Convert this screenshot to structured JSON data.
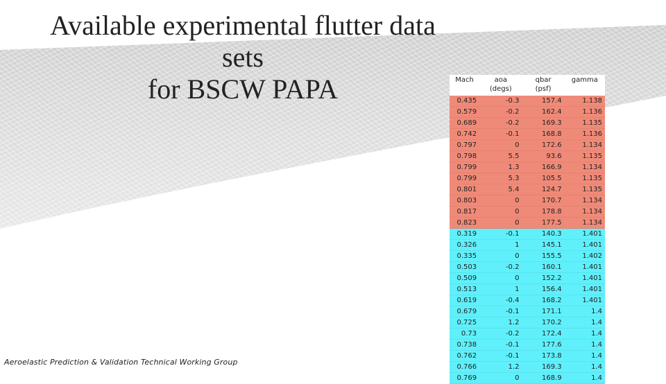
{
  "slide": {
    "title_line1": "Available experimental flutter data sets",
    "title_line2": "for BSCW PAPA",
    "footer": "Aeroelastic Prediction & Validation Technical Working Group"
  },
  "table": {
    "headers": [
      {
        "label": "Mach",
        "unit": ""
      },
      {
        "label": "aoa",
        "unit": "(degs)"
      },
      {
        "label": "qbar",
        "unit": "(psf)"
      },
      {
        "label": "gamma",
        "unit": ""
      }
    ],
    "row_colors": {
      "group1": "#f08a78",
      "group2": "#5ff0fb"
    },
    "rows": [
      {
        "group": "red",
        "cells": [
          "0.435",
          "-0.3",
          "157.4",
          "1.138"
        ]
      },
      {
        "group": "red",
        "cells": [
          "0.579",
          "-0.2",
          "162.4",
          "1.136"
        ]
      },
      {
        "group": "red",
        "cells": [
          "0.689",
          "-0.2",
          "169.3",
          "1.135"
        ]
      },
      {
        "group": "red",
        "cells": [
          "0.742",
          "-0.1",
          "168.8",
          "1.136"
        ]
      },
      {
        "group": "red",
        "cells": [
          "0.797",
          "0",
          "172.6",
          "1.134"
        ]
      },
      {
        "group": "red",
        "cells": [
          "0.798",
          "5.5",
          "93.6",
          "1.135"
        ]
      },
      {
        "group": "red",
        "cells": [
          "0.799",
          "1.3",
          "166.9",
          "1.134"
        ]
      },
      {
        "group": "red",
        "cells": [
          "0.799",
          "5.3",
          "105.5",
          "1.135"
        ]
      },
      {
        "group": "red",
        "cells": [
          "0.801",
          "5.4",
          "124.7",
          "1.135"
        ]
      },
      {
        "group": "red",
        "cells": [
          "0.803",
          "0",
          "170.7",
          "1.134"
        ]
      },
      {
        "group": "red",
        "cells": [
          "0.817",
          "0",
          "178.8",
          "1.134"
        ]
      },
      {
        "group": "red",
        "cells": [
          "0.823",
          "0",
          "177.5",
          "1.134"
        ]
      },
      {
        "group": "cyan",
        "cells": [
          "0.319",
          "-0.1",
          "140.3",
          "1.401"
        ]
      },
      {
        "group": "cyan",
        "cells": [
          "0.326",
          "1",
          "145.1",
          "1.401"
        ]
      },
      {
        "group": "cyan",
        "cells": [
          "0.335",
          "0",
          "155.5",
          "1.402"
        ]
      },
      {
        "group": "cyan",
        "cells": [
          "0.503",
          "-0.2",
          "160.1",
          "1.401"
        ]
      },
      {
        "group": "cyan",
        "cells": [
          "0.509",
          "0",
          "152.2",
          "1.401"
        ]
      },
      {
        "group": "cyan",
        "cells": [
          "0.513",
          "1",
          "156.4",
          "1.401"
        ]
      },
      {
        "group": "cyan",
        "cells": [
          "0.619",
          "-0.4",
          "168.2",
          "1.401"
        ]
      },
      {
        "group": "cyan",
        "cells": [
          "0.679",
          "-0.1",
          "171.1",
          "1.4"
        ]
      },
      {
        "group": "cyan",
        "cells": [
          "0.725",
          "1.2",
          "170.2",
          "1.4"
        ]
      },
      {
        "group": "cyan",
        "cells": [
          "0.73",
          "-0.2",
          "172.4",
          "1.4"
        ]
      },
      {
        "group": "cyan",
        "cells": [
          "0.738",
          "-0.1",
          "177.6",
          "1.4"
        ]
      },
      {
        "group": "cyan",
        "cells": [
          "0.762",
          "-0.1",
          "173.8",
          "1.4"
        ]
      },
      {
        "group": "cyan",
        "cells": [
          "0.766",
          "1.2",
          "169.3",
          "1.4"
        ]
      },
      {
        "group": "cyan",
        "cells": [
          "0.769",
          "0",
          "168.9",
          "1.4"
        ]
      }
    ]
  }
}
